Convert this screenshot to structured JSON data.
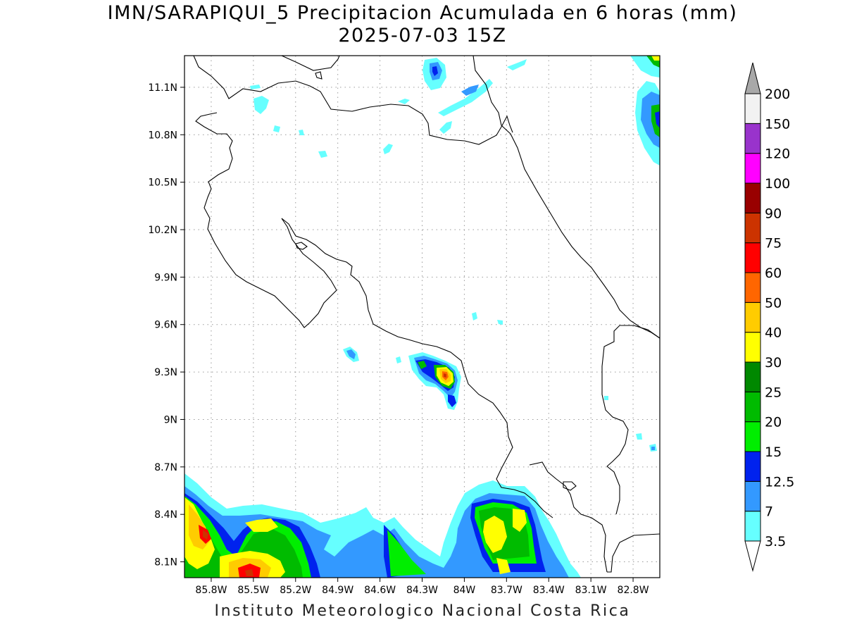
{
  "title": {
    "line1": "IMN/SARAPIQUI_5 Precipitacion Acumulada en 6 horas (mm)",
    "line2": "2025-07-03 15Z"
  },
  "footer": "Instituto Meteorologico Nacional Costa Rica",
  "axes": {
    "lat_labels": [
      "11.1N",
      "10.8N",
      "10.5N",
      "10.2N",
      "9.9N",
      "9.6N",
      "9.3N",
      "9N",
      "8.7N",
      "8.4N",
      "8.1N"
    ],
    "lon_labels": [
      "85.8W",
      "85.5W",
      "85.2W",
      "84.9W",
      "84.6W",
      "84.3W",
      "84W",
      "83.7W",
      "83.4W",
      "83.1W",
      "82.8W"
    ],
    "lat_values": [
      11.1,
      10.8,
      10.5,
      10.2,
      9.9,
      9.6,
      9.3,
      9.0,
      8.7,
      8.4,
      8.1
    ],
    "lon_values": [
      -85.8,
      -85.5,
      -85.2,
      -84.9,
      -84.6,
      -84.3,
      -84.0,
      -83.7,
      -83.4,
      -83.1,
      -82.8
    ],
    "lat_range": [
      8.0,
      11.3
    ],
    "lon_range": [
      -85.99,
      -82.61
    ],
    "grid": "dotted"
  },
  "colorbar": {
    "labels": [
      "3.5",
      "7",
      "12.5",
      "15",
      "20",
      "25",
      "30",
      "40",
      "50",
      "60",
      "75",
      "90",
      "100",
      "120",
      "150",
      "200"
    ],
    "colors": [
      "#66ffff",
      "#3399ff",
      "#0022ee",
      "#00ee00",
      "#00bb00",
      "#008800",
      "#ffff00",
      "#ffcc00",
      "#ff6600",
      "#ff0000",
      "#cc3300",
      "#990000",
      "#ff00ff",
      "#9933cc",
      "#f2f2f2"
    ],
    "over_color": "#a8a8a8",
    "under_color": "#ffffff"
  }
}
